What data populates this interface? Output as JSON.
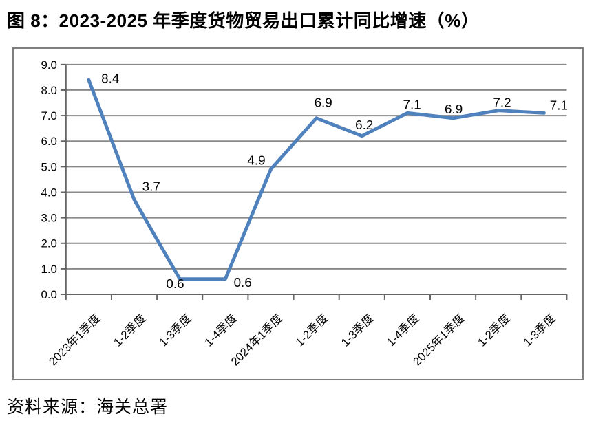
{
  "title": "图 8：2023-2025 年季度货物贸易出口累计同比增速（%）",
  "source": "资料来源：海关总署",
  "colors": {
    "line": "#4F81BD",
    "gridline": "#898989",
    "axis": "#666666",
    "frame_border": "#7f7f7f",
    "text": "#000000"
  },
  "chart_data": {
    "type": "line",
    "title": "",
    "xlabel": "",
    "ylabel": "",
    "categories": [
      "2023年1季度",
      "1-2季度",
      "1-3季度",
      "1-4季度",
      "2024年1季度",
      "1-2季度",
      "1-3季度",
      "1-4季度",
      "2025年1季度",
      "1-2季度",
      "1-3季度"
    ],
    "values": [
      8.4,
      3.7,
      0.6,
      0.6,
      4.9,
      6.9,
      6.2,
      7.1,
      6.9,
      7.2,
      7.1
    ],
    "data_labels": [
      "8.4",
      "3.7",
      "0.6",
      "0.6",
      "4.9",
      "6.9",
      "6.2",
      "7.1",
      "6.9",
      "7.2",
      "7.1"
    ],
    "ylim": [
      0,
      9
    ],
    "ytick_step": 1,
    "ytick_labels": [
      "0.0",
      "1.0",
      "2.0",
      "3.0",
      "4.0",
      "5.0",
      "6.0",
      "7.0",
      "8.0",
      "9.0"
    ],
    "grid": true,
    "legend": "none"
  }
}
